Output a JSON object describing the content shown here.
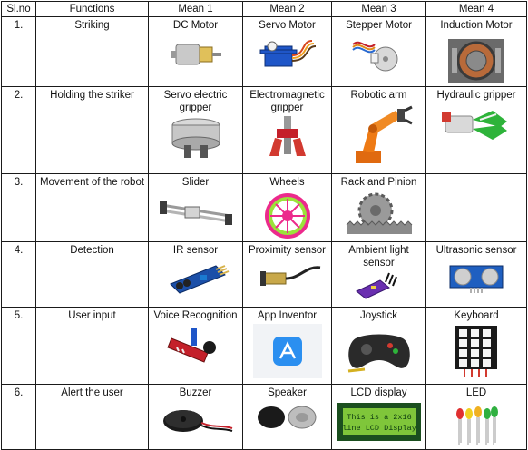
{
  "headers": [
    "Sl.no",
    "Functions",
    "Mean 1",
    "Mean 2",
    "Mean 3",
    "Mean 4"
  ],
  "rows": [
    {
      "no": "1.",
      "function": "Striking",
      "means": [
        "DC Motor",
        "Servo Motor",
        "Stepper Motor",
        "Induction Motor"
      ]
    },
    {
      "no": "2.",
      "function": "Holding the striker",
      "means": [
        "Servo electric gripper",
        "Electromagnetic gripper",
        "Robotic arm",
        "Hydraulic gripper"
      ]
    },
    {
      "no": "3.",
      "function": "Movement of the robot",
      "means": [
        "Slider",
        "Wheels",
        "Rack and Pinion",
        ""
      ]
    },
    {
      "no": "4.",
      "function": "Detection",
      "means": [
        "IR sensor",
        "Proximity sensor",
        "Ambient light sensor",
        "Ultrasonic sensor"
      ]
    },
    {
      "no": "5.",
      "function": "User input",
      "means": [
        "Voice Recognition",
        "App Inventor",
        "Joystick",
        "Keyboard"
      ]
    },
    {
      "no": "6.",
      "function": "Alert the user",
      "means": [
        "Buzzer",
        "Speaker",
        "LCD display",
        "LED"
      ]
    }
  ],
  "lcd_text": [
    "This is a 2x16",
    "line LCD Display"
  ],
  "icons": {
    "dc_motor": "dc-motor-icon",
    "servo": "servo-motor-icon",
    "stepper": "stepper-motor-icon",
    "induction": "induction-motor-icon",
    "servo_gripper": "servo-gripper-icon",
    "em_gripper": "electromagnetic-gripper-icon",
    "robot_arm": "robotic-arm-icon",
    "hyd_gripper": "hydraulic-gripper-icon",
    "slider": "slider-rail-icon",
    "wheel": "wheel-icon",
    "rack": "rack-pinion-icon",
    "ir": "ir-sensor-icon",
    "prox": "proximity-sensor-icon",
    "ambient": "ambient-light-sensor-icon",
    "ultra": "ultrasonic-sensor-icon",
    "voice": "voice-module-icon",
    "app": "app-inventor-icon",
    "joystick": "joystick-icon",
    "keypad": "keypad-icon",
    "buzzer": "buzzer-icon",
    "speaker": "speaker-icon",
    "lcd": "lcd-display-icon",
    "led": "led-icon"
  },
  "colors": {
    "border": "#1a1a1a",
    "wheel": "#ec2a8c",
    "wheel_inner": "#9be23a",
    "servo_blue": "#1f56c8",
    "robot_orange": "#ee7a14",
    "pcb_blue": "#1b4fa8",
    "pcb_red": "#c4202a",
    "lcd_green": "#7fc63a",
    "app_blue": "#2b8ff0"
  }
}
